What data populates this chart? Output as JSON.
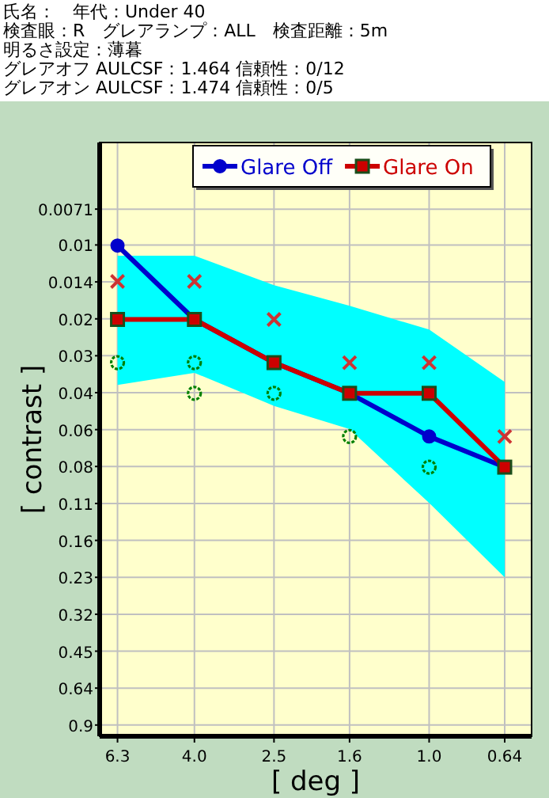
{
  "chart_data": {
    "type": "line",
    "annotations": [
      "氏名：　年代：Under 40",
      "検査眼：R　グレアランプ：ALL　検査距離：5m",
      "明るさ設定：薄暮",
      "グレアオフ AULCSF：1.464 信頼性：0/12",
      "グレアオン AULCSF：1.474 信頼性：0/5"
    ],
    "xlabel": "[ deg ]",
    "ylabel": "[ contrast ]",
    "x": [
      6.3,
      4.0,
      2.5,
      1.6,
      1.0,
      0.64
    ],
    "series": [
      {
        "type": "scatter",
        "marker": "cross",
        "color": "#cc3333",
        "values": [
          0.014,
          0.014,
          0.02,
          0.03,
          0.03,
          0.06
        ]
      },
      {
        "type": "scatter",
        "marker": "circle",
        "color": "#008000",
        "x": [
          6.3,
          4.0,
          4.0,
          2.5,
          1.6,
          1.0
        ],
        "values": [
          0.03,
          0.03,
          0.04,
          0.04,
          0.06,
          0.08
        ]
      },
      {
        "name": "Glare Off",
        "marker": "circle",
        "color": "#0000cc",
        "values": [
          0.01,
          0.02,
          0.03,
          0.04,
          0.06,
          0.08
        ],
        "upper": [
          0.011,
          0.011,
          0.0145,
          0.0176,
          0.022,
          0.036
        ],
        "lower": [
          0.037,
          0.033,
          0.045,
          0.056,
          0.112,
          0.225
        ]
      },
      {
        "name": "Glare On",
        "marker": "square",
        "color": "#cc0000",
        "values": [
          0.02,
          0.02,
          0.03,
          0.04,
          0.04,
          0.08
        ]
      }
    ],
    "log": "xy",
    "xlim": [
      7.0,
      0.546
    ],
    "ylim": [
      1.0,
      0.0038
    ],
    "xticks": [
      6.3,
      {
        "value": 4,
        "label": "4.0"
      },
      2.5,
      1.6,
      {
        "value": 1,
        "label": "1.0"
      },
      0.64
    ],
    "yticks": [
      0.0071,
      {
        "value": 0.00994,
        "label": "0.01"
      },
      {
        "value": 0.01406,
        "label": "0.014"
      },
      {
        "value": 0.01989,
        "label": "0.02"
      },
      {
        "value": 0.02812,
        "label": "0.03"
      },
      {
        "value": 0.03977,
        "label": "0.04"
      },
      {
        "value": 0.05625,
        "label": "0.06"
      },
      {
        "value": 0.0795,
        "label": "0.08"
      },
      {
        "value": 0.1125,
        "label": "0.11"
      },
      {
        "value": 0.1591,
        "label": "0.16"
      },
      {
        "value": 0.225,
        "label": "0.23"
      },
      {
        "value": 0.3182,
        "label": "0.32"
      },
      {
        "value": 0.45,
        "label": "0.45"
      },
      {
        "value": 0.6364,
        "label": "0.64"
      },
      {
        "value": 0.9,
        "label": "0.9"
      }
    ],
    "grid": true,
    "legend": "top right"
  }
}
